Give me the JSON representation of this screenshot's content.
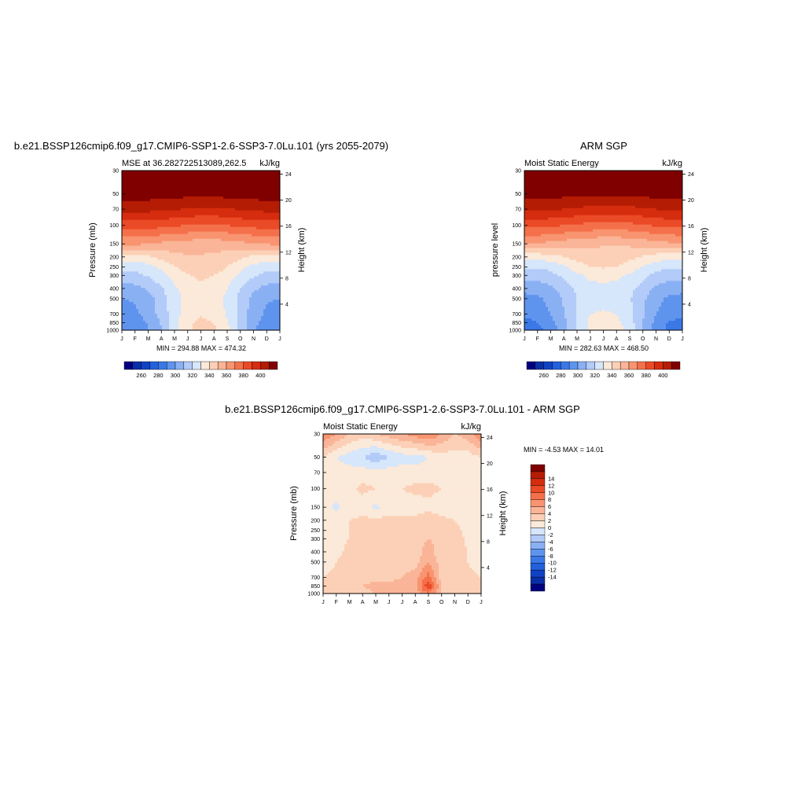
{
  "palettes": {
    "mse": [
      "#00007f",
      "#0a2ea8",
      "#1242c4",
      "#2260dc",
      "#3a78e6",
      "#5f94ee",
      "#8ab0f4",
      "#b2cbf8",
      "#d6e6fb",
      "#fbe9d9",
      "#fcd0b6",
      "#fab497",
      "#f8946f",
      "#f4704a",
      "#ea4a26",
      "#d62c0f",
      "#b51c04",
      "#800000"
    ],
    "diff": [
      "#00007f",
      "#0a2ea8",
      "#1242c4",
      "#2260dc",
      "#3a78e6",
      "#5f94ee",
      "#8ab0f4",
      "#b2cbf8",
      "#d6e6fb",
      "#fbe9d9",
      "#fcd0b6",
      "#fab497",
      "#f8946f",
      "#f4704a",
      "#ea4a26",
      "#d62c0f",
      "#b51c04",
      "#800000"
    ]
  },
  "months": [
    "J",
    "F",
    "M",
    "A",
    "M",
    "J",
    "J",
    "A",
    "S",
    "O",
    "N",
    "D",
    "J"
  ],
  "pressure_ticks": [
    "30",
    "50",
    "70",
    "100",
    "150",
    "200",
    "250",
    "300",
    "400",
    "500",
    "700",
    "850",
    "1000"
  ],
  "pressure_values": [
    30,
    50,
    70,
    100,
    150,
    200,
    250,
    300,
    400,
    500,
    700,
    850,
    1000
  ],
  "height_ticks": [
    "24",
    "20",
    "16",
    "12",
    "8",
    "4"
  ],
  "height_values": [
    24,
    20,
    16,
    12,
    8,
    4
  ],
  "chart_data": [
    {
      "type": "heatmap",
      "title": "b.e21.BSSP126cmip6.f09_g17.CMIP6-SSP1-2.6-SSP3-7.0Lu.101 (yrs 2055-2079)",
      "left_label": "MSE at 36.282722513089,262.5",
      "right_label": "kJ/kg",
      "ylabel": "Pressure (mb)",
      "ylabel_right": "Height (km)",
      "min_max": "MIN = 294.88 MAX = 474.32",
      "levels": [
        250,
        260,
        270,
        280,
        290,
        300,
        310,
        320,
        330,
        340,
        350,
        360,
        370,
        380,
        390,
        400,
        410
      ],
      "colorbar_labels": [
        "260",
        "280",
        "300",
        "320",
        "340",
        "360",
        "380",
        "400"
      ],
      "colorbar_label_levels": [
        260,
        280,
        300,
        320,
        340,
        360,
        380,
        400
      ],
      "pressure_levels": [
        30,
        50,
        70,
        100,
        150,
        200,
        250,
        300,
        400,
        500,
        700,
        850,
        1000
      ],
      "values": [
        [
          420,
          420,
          420,
          420,
          420,
          420,
          420,
          420,
          420,
          420,
          420,
          420,
          420
        ],
        [
          415,
          415,
          415,
          414,
          414,
          413,
          413,
          413,
          414,
          414,
          415,
          415,
          415
        ],
        [
          403,
          403,
          403,
          402,
          401,
          399,
          398,
          398,
          399,
          401,
          402,
          403,
          403
        ],
        [
          385,
          385,
          385,
          383,
          381,
          380,
          379,
          379,
          380,
          382,
          383,
          385,
          385
        ],
        [
          362,
          362,
          360,
          358,
          356,
          355,
          354,
          354,
          355,
          357,
          359,
          361,
          362
        ],
        [
          336,
          336,
          338,
          343,
          347,
          349,
          349,
          348,
          346,
          342,
          338,
          336,
          336
        ],
        [
          323,
          323,
          326,
          332,
          339,
          346,
          347,
          346,
          340,
          333,
          327,
          323,
          323
        ],
        [
          316,
          317,
          321,
          327,
          334,
          339,
          342,
          340,
          335,
          328,
          321,
          317,
          316
        ],
        [
          306,
          307,
          311,
          319,
          328,
          335,
          338,
          336,
          330,
          320,
          312,
          307,
          306
        ],
        [
          300,
          301,
          306,
          315,
          326,
          334,
          337,
          334,
          328,
          317,
          307,
          301,
          300
        ],
        [
          296,
          298,
          304,
          314,
          326,
          336,
          339,
          336,
          329,
          316,
          305,
          298,
          296
        ],
        [
          292,
          294,
          301,
          311,
          326,
          338,
          342,
          340,
          331,
          317,
          304,
          294,
          292
        ],
        [
          290,
          292,
          300,
          309,
          326,
          338,
          344,
          342,
          334,
          317,
          302,
          292,
          290
        ]
      ]
    },
    {
      "type": "heatmap",
      "title": "ARM SGP",
      "left_label": "Moist Static Energy",
      "right_label": "kJ/kg",
      "ylabel": "pressure level",
      "ylabel_right": "Height (km)",
      "min_max": "MIN = 282.63 MAX = 468.50",
      "levels": [
        250,
        260,
        270,
        280,
        290,
        300,
        310,
        320,
        330,
        340,
        350,
        360,
        370,
        380,
        390,
        400,
        410
      ],
      "colorbar_labels": [
        "260",
        "280",
        "300",
        "320",
        "340",
        "360",
        "380",
        "400"
      ],
      "colorbar_label_levels": [
        260,
        280,
        300,
        320,
        340,
        360,
        380,
        400
      ],
      "pressure_levels": [
        30,
        50,
        70,
        100,
        150,
        200,
        250,
        300,
        400,
        500,
        700,
        850,
        1000
      ],
      "values": [
        [
          420,
          420,
          420,
          420,
          420,
          420,
          420,
          420,
          420,
          420,
          420,
          420,
          420
        ],
        [
          414,
          414,
          414,
          413,
          413,
          412,
          412,
          412,
          413,
          413,
          414,
          414,
          414
        ],
        [
          402,
          402,
          401,
          400,
          399,
          397,
          396,
          396,
          397,
          399,
          400,
          402,
          402
        ],
        [
          383,
          383,
          382,
          380,
          378,
          377,
          376,
          376,
          377,
          379,
          381,
          383,
          383
        ],
        [
          359,
          359,
          357,
          355,
          353,
          352,
          351,
          351,
          352,
          354,
          356,
          358,
          359
        ],
        [
          334,
          334,
          336,
          340,
          344,
          346,
          346,
          345,
          343,
          339,
          335,
          334,
          334
        ],
        [
          321,
          321,
          323,
          328,
          335,
          340,
          341,
          340,
          335,
          329,
          324,
          321,
          321
        ],
        [
          314,
          314,
          317,
          322,
          328,
          332,
          333,
          332,
          329,
          323,
          317,
          314,
          314
        ],
        [
          303,
          304,
          308,
          315,
          322,
          327,
          328,
          327,
          323,
          316,
          308,
          304,
          303
        ],
        [
          297,
          298,
          303,
          311,
          320,
          326,
          327,
          326,
          321,
          312,
          303,
          298,
          297
        ],
        [
          292,
          294,
          300,
          310,
          321,
          330,
          331,
          330,
          323,
          311,
          300,
          294,
          292
        ],
        [
          287,
          290,
          297,
          307,
          322,
          332,
          336,
          333,
          325,
          310,
          297,
          289,
          287
        ],
        [
          284,
          287,
          294,
          305,
          322,
          332,
          338,
          334,
          327,
          310,
          295,
          287,
          284
        ]
      ]
    },
    {
      "type": "heatmap",
      "title": "b.e21.BSSP126cmip6.f09_g17.CMIP6-SSP1-2.6-SSP3-7.0Lu.101 - ARM SGP",
      "left_label": "Moist Static Energy",
      "right_label": "kJ/kg",
      "ylabel": "Pressure (mb)",
      "ylabel_right": "Height (km)",
      "min_max": "MIN =  -4.53 MAX =  14.01",
      "levels": [
        -16,
        -14,
        -12,
        -10,
        -8,
        -6,
        -4,
        -2,
        0,
        2,
        4,
        6,
        8,
        10,
        12,
        14,
        16
      ],
      "colorbar_labels": [
        "14",
        "12",
        "10",
        "8",
        "6",
        "4",
        "2",
        "0",
        "-2",
        "-4",
        "-6",
        "-8",
        "-10",
        "-12",
        "-14"
      ],
      "colorbar_label_levels": [
        14,
        12,
        10,
        8,
        6,
        4,
        2,
        0,
        -2,
        -4,
        -6,
        -8,
        -10,
        -12,
        -14
      ],
      "pressure_levels": [
        30,
        50,
        70,
        100,
        150,
        200,
        250,
        300,
        400,
        500,
        700,
        850,
        1000
      ],
      "values": [
        [
          8,
          6,
          4,
          3,
          4,
          5,
          6,
          7,
          8,
          6,
          4,
          5,
          8
        ],
        [
          2,
          0,
          -1,
          -2,
          -3.5,
          -2,
          -1,
          -1,
          0,
          1,
          1,
          1,
          2
        ],
        [
          1.5,
          1,
          1,
          1,
          1,
          1,
          1,
          1,
          1,
          1.5,
          1.5,
          1,
          1.5
        ],
        [
          2,
          1.5,
          1.5,
          2.5,
          2,
          2,
          2,
          2.5,
          2.5,
          2,
          1.5,
          1.5,
          2
        ],
        [
          1,
          -0.5,
          1,
          1,
          -0.5,
          1,
          1,
          1,
          1.5,
          1,
          1,
          1,
          1
        ],
        [
          1,
          1,
          2,
          2.5,
          2.5,
          2.5,
          2.5,
          2.5,
          3,
          2.5,
          2,
          1,
          1
        ],
        [
          1,
          1,
          2,
          2.5,
          3,
          3,
          3,
          3,
          3,
          3,
          2.5,
          1.5,
          1
        ],
        [
          1,
          1.5,
          2,
          2.5,
          3,
          3,
          3,
          3,
          4,
          3.5,
          3,
          1.5,
          1
        ],
        [
          1.5,
          1.5,
          2.5,
          3,
          3,
          3,
          3,
          3,
          5,
          2.5,
          3,
          2,
          1.5
        ],
        [
          1,
          2,
          3,
          3,
          3,
          3,
          3,
          3,
          6,
          3,
          3,
          2,
          1
        ],
        [
          2,
          2.5,
          3,
          3,
          3,
          3,
          4,
          5,
          9,
          3,
          3,
          2.5,
          2
        ],
        [
          2,
          3,
          3,
          4,
          5,
          5,
          5,
          5,
          12,
          4,
          3,
          3,
          2
        ],
        [
          2,
          3,
          3,
          3,
          4,
          5,
          5,
          5,
          8,
          4,
          3,
          3,
          2
        ]
      ]
    }
  ]
}
